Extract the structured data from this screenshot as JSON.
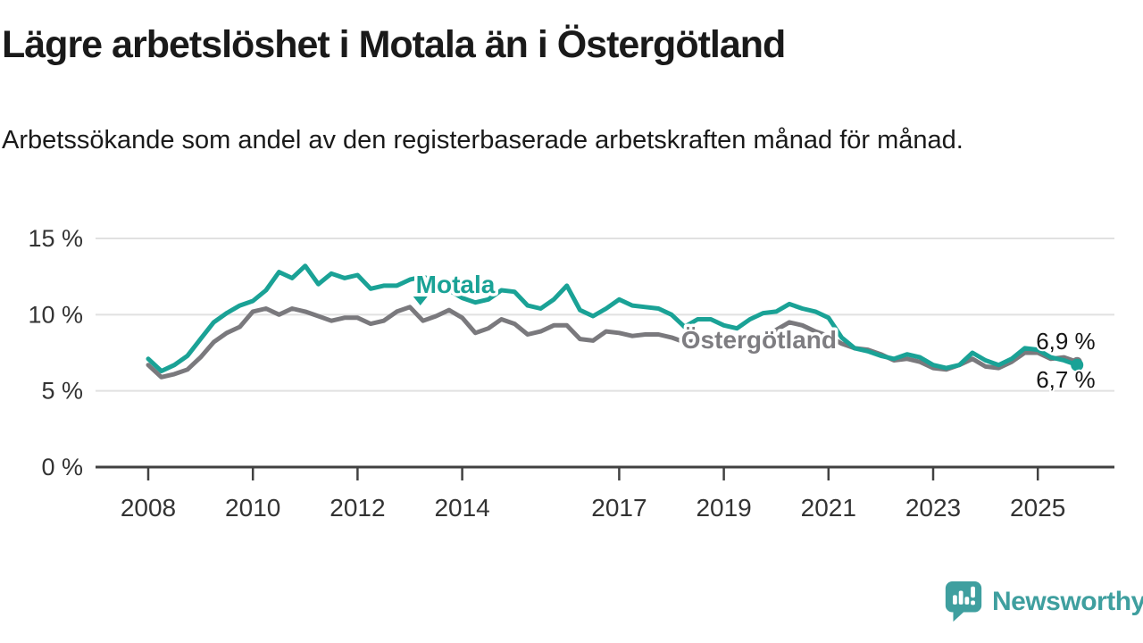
{
  "header": {
    "title": "Lägre arbetslöshet i Motala än i Östergötland",
    "subtitle": "Arbetssökande som andel av den registerbaserade arbetskraften månad för månad."
  },
  "chart_data": {
    "type": "line",
    "title": "Lägre arbetslöshet i Motala än i Östergötland",
    "subtitle": "Arbetssökande som andel av den registerbaserade arbetskraften månad för månad.",
    "x_start": 2008.0,
    "x_step": 0.25,
    "x_end": 2025.75,
    "ylim": [
      0,
      15.5
    ],
    "grid": true,
    "legend": "inline-labels",
    "y_ticks": [
      {
        "y": 0,
        "label": "0 %"
      },
      {
        "y": 5,
        "label": "5 %"
      },
      {
        "y": 10,
        "label": "10 %"
      },
      {
        "y": 15,
        "label": "15 %"
      }
    ],
    "x_ticks": [
      {
        "x": 2008,
        "label": "2008"
      },
      {
        "x": 2010,
        "label": "2010"
      },
      {
        "x": 2012,
        "label": "2012"
      },
      {
        "x": 2014,
        "label": "2014"
      },
      {
        "x": 2017,
        "label": "2017"
      },
      {
        "x": 2019,
        "label": "2019"
      },
      {
        "x": 2021,
        "label": "2021"
      },
      {
        "x": 2023,
        "label": "2023"
      },
      {
        "x": 2025,
        "label": "2025"
      }
    ],
    "series": [
      {
        "id": "ostergotland",
        "name": "Östergötland",
        "color": "#7a797d",
        "end_label": "6,9 %",
        "end_value": 6.9,
        "values": [
          6.7,
          5.9,
          6.1,
          6.4,
          7.2,
          8.2,
          8.8,
          9.2,
          10.2,
          10.4,
          10.0,
          10.4,
          10.2,
          9.9,
          9.6,
          9.8,
          9.8,
          9.4,
          9.6,
          10.2,
          10.5,
          9.6,
          9.9,
          10.3,
          9.8,
          8.8,
          9.1,
          9.7,
          9.4,
          8.7,
          8.9,
          9.3,
          9.3,
          8.4,
          8.3,
          8.9,
          8.8,
          8.6,
          8.7,
          8.7,
          8.5,
          8.2,
          8.3,
          8.3,
          8.1,
          8.0,
          8.3,
          8.6,
          9.0,
          9.5,
          9.3,
          8.9,
          8.6,
          8.1,
          7.8,
          7.7,
          7.4,
          7.0,
          7.1,
          6.9,
          6.5,
          6.4,
          6.7,
          7.1,
          6.6,
          6.5,
          6.9,
          7.5,
          7.5,
          7.1,
          7.2,
          6.9
        ]
      },
      {
        "id": "motala",
        "name": "Motala",
        "color": "#1aa296",
        "end_label": "6,7 %",
        "end_value": 6.7,
        "values": [
          7.1,
          6.3,
          6.7,
          7.3,
          8.4,
          9.5,
          10.1,
          10.6,
          10.9,
          11.6,
          12.8,
          12.4,
          13.2,
          12.0,
          12.7,
          12.4,
          12.6,
          11.7,
          11.9,
          11.9,
          12.3,
          12.5,
          12.1,
          11.6,
          11.1,
          10.8,
          11.0,
          11.6,
          11.5,
          10.6,
          10.4,
          11.0,
          11.9,
          10.3,
          9.9,
          10.4,
          11.0,
          10.6,
          10.5,
          10.4,
          10.0,
          9.2,
          9.7,
          9.7,
          9.3,
          9.1,
          9.7,
          10.1,
          10.2,
          10.7,
          10.4,
          10.2,
          9.8,
          8.5,
          7.8,
          7.6,
          7.3,
          7.1,
          7.4,
          7.2,
          6.7,
          6.5,
          6.7,
          7.5,
          7.0,
          6.7,
          7.1,
          7.8,
          7.7,
          7.2,
          7.0,
          6.7
        ]
      }
    ],
    "annotations": [
      {
        "id": "motala-series-label",
        "kind": "series",
        "text": "Motala",
        "x": 2013.87,
        "y": 12.0,
        "color": "#1aa296",
        "pointer": {
          "x": 2013.2,
          "y": 10.9
        }
      },
      {
        "id": "ostergotland-series-label",
        "kind": "series",
        "text": "Östergötland",
        "x": 2019.67,
        "y": 8.38,
        "color": "#7e7d81"
      },
      {
        "id": "end-value-label-ostergotland",
        "kind": "value",
        "text": "6,9 %",
        "x": 2026.1,
        "y": 8.26,
        "align": "end",
        "color": "#151515"
      },
      {
        "id": "end-value-label-motala",
        "kind": "value",
        "text": "6,7 %",
        "x": 2026.1,
        "y": 5.74,
        "align": "end",
        "color": "#151515"
      }
    ]
  },
  "footer": {
    "brand": "Newsworthy",
    "brand_color": "#3f9f9f"
  }
}
